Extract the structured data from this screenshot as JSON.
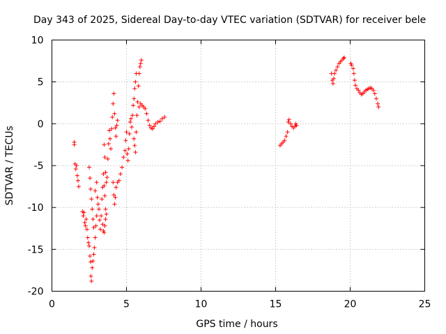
{
  "chart_data": {
    "type": "scatter",
    "title": "Day 343 of 2025, Sidereal Day-to-day VTEC variation (SDTVAR) for receiver bele",
    "xlabel": "GPS time / hours",
    "ylabel": "SDTVAR / TECUs",
    "xlim": [
      0,
      25
    ],
    "ylim": [
      -20,
      10
    ],
    "xticks": [
      0,
      5,
      10,
      15,
      20,
      25
    ],
    "yticks": [
      -20,
      -15,
      -10,
      -5,
      0,
      5,
      10
    ],
    "grid": true,
    "marker": "+",
    "color": "#ff0000",
    "series": [
      {
        "name": "SDTVAR",
        "points": [
          [
            1.5,
            -2.2
          ],
          [
            1.5,
            -2.5
          ],
          [
            1.55,
            -4.8
          ],
          [
            1.6,
            -5.4
          ],
          [
            1.65,
            -5.0
          ],
          [
            1.7,
            -6.2
          ],
          [
            1.75,
            -6.8
          ],
          [
            1.8,
            -7.5
          ],
          [
            2.05,
            -10.5
          ],
          [
            2.1,
            -11.0
          ],
          [
            2.15,
            -10.6
          ],
          [
            2.2,
            -11.8
          ],
          [
            2.25,
            -12.2
          ],
          [
            2.3,
            -11.4
          ],
          [
            2.35,
            -12.6
          ],
          [
            2.4,
            -13.6
          ],
          [
            2.45,
            -14.2
          ],
          [
            2.5,
            -14.6
          ],
          [
            2.55,
            -15.8
          ],
          [
            2.6,
            -16.5
          ],
          [
            2.62,
            -18.2
          ],
          [
            2.65,
            -18.8
          ],
          [
            2.7,
            -17.2
          ],
          [
            2.75,
            -16.4
          ],
          [
            2.8,
            -15.6
          ],
          [
            2.85,
            -14.8
          ],
          [
            2.9,
            -13.6
          ],
          [
            2.95,
            -12.2
          ],
          [
            3.0,
            -11.0
          ],
          [
            2.5,
            -5.2
          ],
          [
            2.55,
            -6.5
          ],
          [
            2.6,
            -7.8
          ],
          [
            2.65,
            -9.0
          ],
          [
            2.7,
            -10.2
          ],
          [
            2.75,
            -11.4
          ],
          [
            2.8,
            -12.4
          ],
          [
            2.9,
            -8.0
          ],
          [
            3.0,
            -7.0
          ],
          [
            3.05,
            -8.8
          ],
          [
            3.1,
            -9.6
          ],
          [
            3.15,
            -10.2
          ],
          [
            3.2,
            -11.5
          ],
          [
            3.25,
            -12.6
          ],
          [
            3.3,
            -11.0
          ],
          [
            3.35,
            -9.0
          ],
          [
            3.4,
            -7.6
          ],
          [
            3.45,
            -6.0
          ],
          [
            3.5,
            -7.4
          ],
          [
            3.55,
            -8.6
          ],
          [
            3.6,
            -10.2
          ],
          [
            3.4,
            -12.0
          ],
          [
            3.45,
            -12.8
          ],
          [
            3.5,
            -13.0
          ],
          [
            3.55,
            -12.2
          ],
          [
            3.6,
            -11.4
          ],
          [
            3.65,
            -10.8
          ],
          [
            3.5,
            -2.5
          ],
          [
            3.55,
            -4.0
          ],
          [
            3.6,
            -5.8
          ],
          [
            3.65,
            -7.0
          ],
          [
            3.7,
            -6.4
          ],
          [
            3.75,
            -4.2
          ],
          [
            3.8,
            -2.4
          ],
          [
            3.85,
            -0.8
          ],
          [
            3.9,
            -1.8
          ],
          [
            3.95,
            -3.0
          ],
          [
            4.0,
            -0.6
          ],
          [
            4.05,
            0.8
          ],
          [
            4.1,
            2.4
          ],
          [
            4.15,
            3.6
          ],
          [
            4.2,
            1.2
          ],
          [
            4.25,
            -0.5
          ],
          [
            4.3,
            -1.5
          ],
          [
            4.35,
            -0.2
          ],
          [
            4.4,
            0.4
          ],
          [
            4.1,
            -7.0
          ],
          [
            4.15,
            -8.5
          ],
          [
            4.2,
            -9.6
          ],
          [
            4.25,
            -8.8
          ],
          [
            4.3,
            -7.6
          ],
          [
            4.4,
            -7.0
          ],
          [
            4.5,
            -6.8
          ],
          [
            4.6,
            -6.0
          ],
          [
            4.7,
            -5.2
          ],
          [
            4.8,
            -4.0
          ],
          [
            4.9,
            -3.2
          ],
          [
            4.95,
            -2.0
          ],
          [
            5.0,
            -1.0
          ],
          [
            5.05,
            -3.6
          ],
          [
            5.1,
            -4.4
          ],
          [
            5.15,
            -3.0
          ],
          [
            5.2,
            -1.2
          ],
          [
            5.25,
            0.2
          ],
          [
            5.3,
            0.6
          ],
          [
            5.35,
            -0.4
          ],
          [
            5.4,
            1.0
          ],
          [
            5.45,
            2.2
          ],
          [
            5.5,
            3.0
          ],
          [
            5.55,
            4.2
          ],
          [
            5.6,
            5.0
          ],
          [
            5.65,
            6.0
          ],
          [
            5.5,
            -1.8
          ],
          [
            5.55,
            -2.6
          ],
          [
            5.6,
            -3.4
          ],
          [
            5.65,
            -1.0
          ],
          [
            5.7,
            1.0
          ],
          [
            5.75,
            2.6
          ],
          [
            5.8,
            4.5
          ],
          [
            5.85,
            6.0
          ],
          [
            5.9,
            6.8
          ],
          [
            5.95,
            7.2
          ],
          [
            6.0,
            7.6
          ],
          [
            5.85,
            2.0
          ],
          [
            5.95,
            2.4
          ],
          [
            6.05,
            2.2
          ],
          [
            6.15,
            2.0
          ],
          [
            6.25,
            1.8
          ],
          [
            6.35,
            1.2
          ],
          [
            6.45,
            0.4
          ],
          [
            6.55,
            -0.2
          ],
          [
            6.65,
            -0.5
          ],
          [
            6.75,
            -0.6
          ],
          [
            6.85,
            -0.3
          ],
          [
            6.95,
            0.0
          ],
          [
            7.1,
            0.2
          ],
          [
            7.25,
            0.3
          ],
          [
            7.4,
            0.6
          ],
          [
            7.55,
            0.8
          ],
          [
            15.3,
            -2.6
          ],
          [
            15.4,
            -2.4
          ],
          [
            15.5,
            -2.2
          ],
          [
            15.6,
            -2.0
          ],
          [
            15.7,
            -1.5
          ],
          [
            15.8,
            -1.0
          ],
          [
            15.85,
            0.2
          ],
          [
            15.9,
            0.5
          ],
          [
            16.0,
            0.0
          ],
          [
            16.1,
            -0.3
          ],
          [
            16.2,
            -0.5
          ],
          [
            16.3,
            -0.3
          ],
          [
            16.35,
            0.0
          ],
          [
            16.4,
            -0.2
          ],
          [
            18.75,
            6.0
          ],
          [
            18.8,
            5.2
          ],
          [
            18.85,
            4.8
          ],
          [
            18.9,
            5.4
          ],
          [
            18.95,
            6.0
          ],
          [
            19.05,
            6.4
          ],
          [
            19.15,
            6.8
          ],
          [
            19.25,
            7.2
          ],
          [
            19.35,
            7.4
          ],
          [
            19.45,
            7.6
          ],
          [
            19.55,
            7.8
          ],
          [
            19.6,
            7.9
          ],
          [
            20.05,
            7.2
          ],
          [
            20.1,
            7.0
          ],
          [
            20.2,
            6.6
          ],
          [
            20.25,
            6.0
          ],
          [
            20.3,
            5.2
          ],
          [
            20.35,
            4.6
          ],
          [
            20.45,
            4.2
          ],
          [
            20.55,
            4.0
          ],
          [
            20.65,
            3.7
          ],
          [
            20.75,
            3.5
          ],
          [
            20.85,
            3.6
          ],
          [
            20.95,
            3.8
          ],
          [
            21.05,
            4.0
          ],
          [
            21.15,
            4.1
          ],
          [
            21.25,
            4.2
          ],
          [
            21.35,
            4.3
          ],
          [
            21.45,
            4.2
          ],
          [
            21.55,
            4.0
          ],
          [
            21.65,
            3.6
          ],
          [
            21.75,
            3.0
          ],
          [
            21.85,
            2.4
          ],
          [
            21.9,
            2.0
          ]
        ]
      }
    ]
  }
}
